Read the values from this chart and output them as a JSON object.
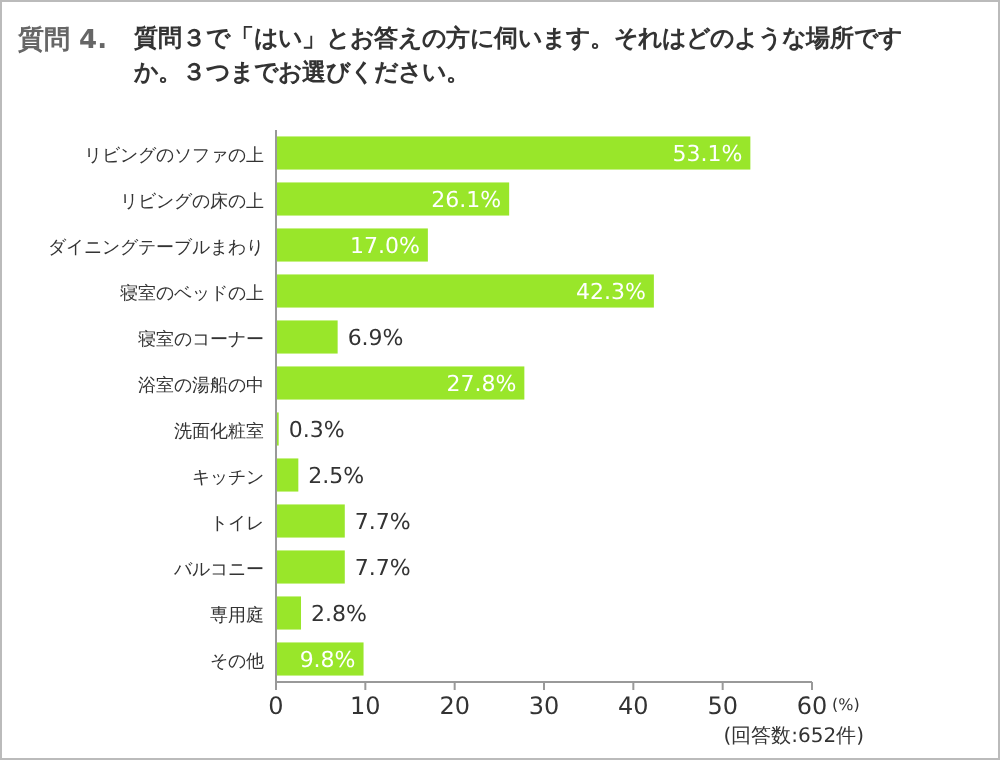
{
  "chart_data": {
    "type": "bar",
    "orientation": "horizontal",
    "title": "質問 4.",
    "subtitle": "質問３で「はい」とお答えの方に伺います。それはどのような場所ですか。３つまでお選びください。",
    "categories": [
      "リビングのソファの上",
      "リビングの床の上",
      "ダイニングテーブルまわり",
      "寝室のベッドの上",
      "寝室のコーナー",
      "浴室の湯船の中",
      "洗面化粧室",
      "キッチン",
      "トイレ",
      "バルコニー",
      "専用庭",
      "その他"
    ],
    "values": [
      53.1,
      26.1,
      17.0,
      42.3,
      6.9,
      27.8,
      0.3,
      2.5,
      7.7,
      7.7,
      2.8,
      9.8
    ],
    "value_labels": [
      "53.1%",
      "26.1%",
      "17.0%",
      "42.3%",
      "6.9%",
      "27.8%",
      "0.3%",
      "2.5%",
      "7.7%",
      "7.7%",
      "2.8%",
      "9.8%"
    ],
    "color": "#99e62a",
    "xlim": [
      0,
      60
    ],
    "xticks": [
      0,
      10,
      20,
      30,
      40,
      50,
      60
    ],
    "xlabel": "(%)",
    "annotations": [
      "(回答数:652件)"
    ],
    "grid": false
  }
}
